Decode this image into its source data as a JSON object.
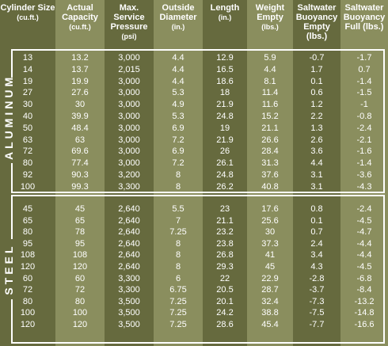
{
  "headers": [
    {
      "title": "Cylinder Size",
      "unit": "(cu.ft.)"
    },
    {
      "title": "Actual Capacity",
      "unit": "(cu.ft.)"
    },
    {
      "title": "Max. Service Pressure",
      "unit": "(psi)"
    },
    {
      "title": "Outside Diameter",
      "unit": "(in.)"
    },
    {
      "title": "Length",
      "unit": "(in.)"
    },
    {
      "title": "Weight Empty",
      "unit": "(lbs.)"
    },
    {
      "title": "Saltwater Buoyancy Empty (lbs.)",
      "unit": ""
    },
    {
      "title": "Saltwater Buoyancy Full (lbs.)",
      "unit": ""
    }
  ],
  "sections": [
    {
      "label": "ALUMINUM",
      "rows": [
        [
          "13",
          "13.2",
          "3,000",
          "4.4",
          "12.9",
          "5.9",
          "-0.7",
          "-1.7"
        ],
        [
          "14",
          "13.7",
          "2,015",
          "4.4",
          "16.5",
          "4.4",
          "1.7",
          "0.7"
        ],
        [
          "19",
          "19.9",
          "3,000",
          "4.4",
          "18.6",
          "8.1",
          "0.1",
          "-1.4"
        ],
        [
          "27",
          "27.6",
          "3,000",
          "5.3",
          "18",
          "11.4",
          "0.6",
          "-1.5"
        ],
        [
          "30",
          "30",
          "3,000",
          "4.9",
          "21.9",
          "11.6",
          "1.2",
          "-1"
        ],
        [
          "40",
          "39.9",
          "3,000",
          "5.3",
          "24.8",
          "15.2",
          "2.2",
          "-0.8"
        ],
        [
          "50",
          "48.4",
          "3,000",
          "6.9",
          "19",
          "21.1",
          "1.3",
          "-2.4"
        ],
        [
          "63",
          "63",
          "3,000",
          "7.2",
          "21.9",
          "26.6",
          "2.6",
          "-2.1"
        ],
        [
          "72",
          "69.6",
          "3,000",
          "6.9",
          "26",
          "28.4",
          "3.6",
          "-1.6"
        ],
        [
          "80",
          "77.4",
          "3,000",
          "7.2",
          "26.1",
          "31.3",
          "4.4",
          "-1.4"
        ],
        [
          "92",
          "90.3",
          "3,200",
          "8",
          "24.8",
          "37.6",
          "3.1",
          "-3.6"
        ],
        [
          "100",
          "99.3",
          "3,300",
          "8",
          "26.2",
          "40.8",
          "3.1",
          "-4.3"
        ]
      ]
    },
    {
      "label": "STEEL",
      "rows": [
        [
          "45",
          "45",
          "2,640",
          "5.5",
          "23",
          "17.6",
          "0.8",
          "-2.4"
        ],
        [
          "65",
          "65",
          "2,640",
          "7",
          "21.1",
          "25.6",
          "0.1",
          "-4.5"
        ],
        [
          "80",
          "78",
          "2,640",
          "7.25",
          "23.2",
          "30",
          "0.7",
          "-4.7"
        ],
        [
          "95",
          "95",
          "2,640",
          "8",
          "23.8",
          "37.3",
          "2.4",
          "-4.4"
        ],
        [
          "108",
          "108",
          "2,640",
          "8",
          "26.8",
          "41",
          "3.4",
          "-4.4"
        ],
        [
          "120",
          "120",
          "2,640",
          "8",
          "29.3",
          "45",
          "4.3",
          "-4.5"
        ],
        [
          "60",
          "60",
          "3,300",
          "6",
          "22",
          "22.9",
          "-2.8",
          "-6.8"
        ],
        [
          "72",
          "72",
          "3,300",
          "6.75",
          "20.5",
          "28.7",
          "-3.7",
          "-8.4"
        ],
        [
          "80",
          "80",
          "3,500",
          "7.25",
          "20.1",
          "32.4",
          "-7.3",
          "-13.2"
        ],
        [
          "100",
          "100",
          "3,500",
          "7.25",
          "24.2",
          "38.8",
          "-7.5",
          "-14.8"
        ],
        [
          "120",
          "120",
          "3,500",
          "7.25",
          "28.6",
          "45.4",
          "-7.7",
          "-16.6"
        ]
      ]
    }
  ],
  "colors": {
    "dark_column": "#666a3e",
    "light_column": "#8a8e5e",
    "text": "#ffffff"
  }
}
